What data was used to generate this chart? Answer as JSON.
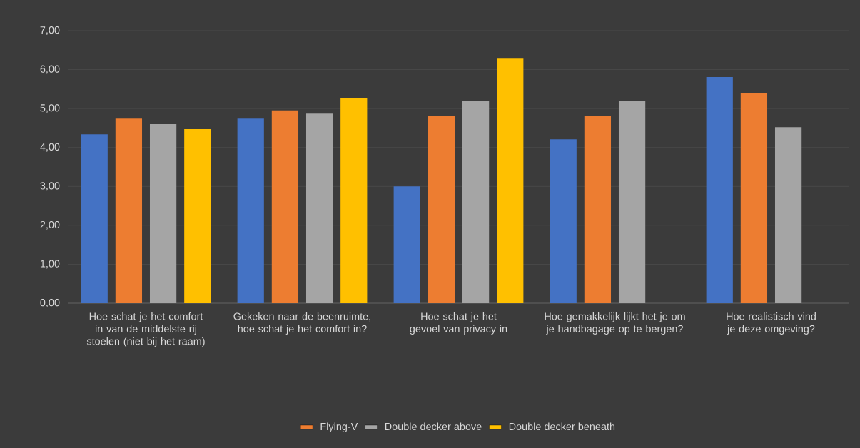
{
  "chart_data": {
    "type": "bar",
    "categories": [
      "Hoe schat je het comfort in van de middelste rij stoelen (niet bij het raam)",
      "Gekeken naar de beenruimte, hoe schat je het comfort in?",
      "Hoe schat je het gevoel van privacy in",
      "Hoe gemakkelijk lijkt het je om je handbagage op te bergen?",
      "Hoe realistisch vind je deze omgeving?"
    ],
    "series": [
      {
        "color": "#4472c4",
        "values": [
          4.34,
          4.74,
          3.0,
          4.21,
          5.81
        ]
      },
      {
        "name": "Flying-V",
        "color": "#ed7d31",
        "values": [
          4.74,
          4.95,
          4.82,
          4.8,
          5.4
        ]
      },
      {
        "name": "Double decker above",
        "color": "#a5a5a5",
        "values": [
          4.6,
          4.87,
          5.2,
          5.2,
          4.52
        ]
      },
      {
        "name": "Double decker beneath",
        "color": "#ffc000",
        "values": [
          4.47,
          5.27,
          6.28,
          null,
          null
        ]
      }
    ],
    "ylim": [
      0,
      7
    ],
    "yticks": [
      {
        "value": 0,
        "label": "0,00"
      },
      {
        "value": 1,
        "label": "1,00"
      },
      {
        "value": 2,
        "label": "2,00"
      },
      {
        "value": 3,
        "label": "3,00"
      },
      {
        "value": 4,
        "label": "4,00"
      },
      {
        "value": 5,
        "label": "5,00"
      },
      {
        "value": 6,
        "label": "6,00"
      },
      {
        "value": 7,
        "label": "7,00"
      }
    ],
    "grid": "y",
    "legend": "bottom"
  }
}
